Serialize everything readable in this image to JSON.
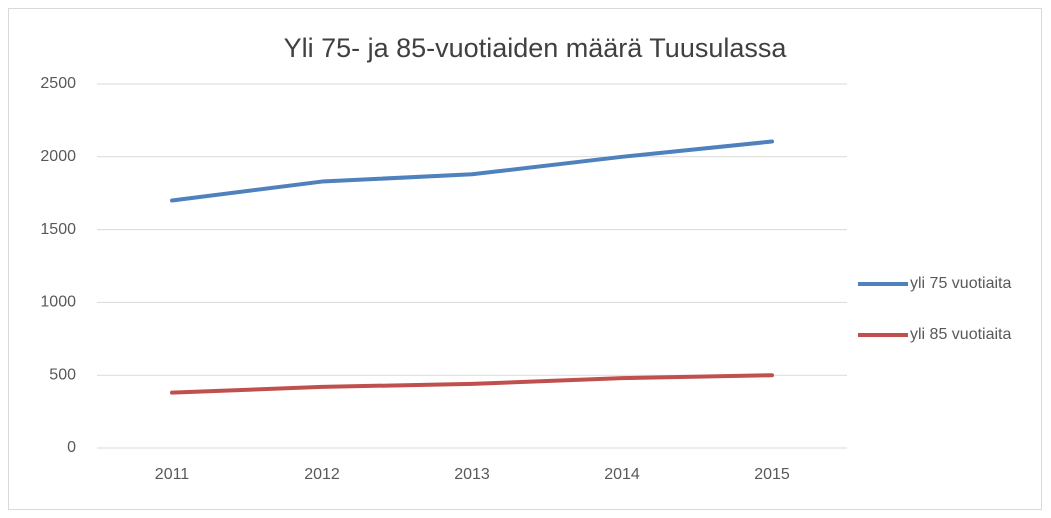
{
  "chart_data": {
    "type": "line",
    "title": "Yli 75- ja 85-vuotiaiden määrä Tuusulassa",
    "categories": [
      "2011",
      "2012",
      "2013",
      "2014",
      "2015"
    ],
    "series": [
      {
        "name": "yli 75 vuotiaita",
        "color": "#4f81bd",
        "values": [
          1700,
          1830,
          1880,
          2000,
          2105
        ]
      },
      {
        "name": "yli 85 vuotiaita",
        "color": "#c0504d",
        "values": [
          380,
          420,
          440,
          480,
          500
        ]
      }
    ],
    "ylim": [
      0,
      2500
    ],
    "yticks": [
      0,
      500,
      1000,
      1500,
      2000,
      2500
    ],
    "grid": true,
    "legend": "right"
  }
}
